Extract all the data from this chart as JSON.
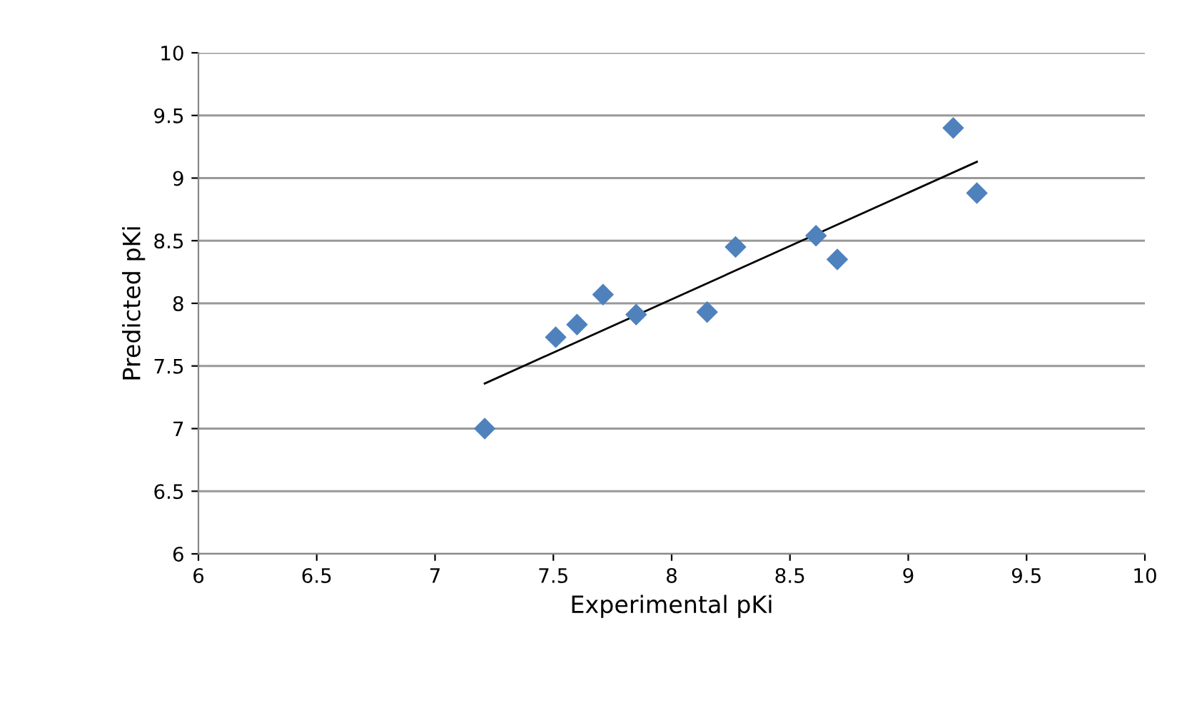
{
  "chart_data": {
    "type": "scatter",
    "xlabel": "Experimental pKi",
    "ylabel": "Predicted pKi",
    "series": [
      {
        "color": "#4f81bd",
        "marker": "diamond",
        "x": [
          7.21,
          7.51,
          7.6,
          7.71,
          7.85,
          8.15,
          8.27,
          8.61,
          8.7,
          9.19,
          9.29
        ],
        "values": [
          7.0,
          7.73,
          7.83,
          8.07,
          7.91,
          7.93,
          8.45,
          8.54,
          8.35,
          9.4,
          8.88
        ]
      },
      {
        "type": "line",
        "color": "#000000",
        "marker": "none",
        "x": [
          7.21,
          9.29
        ],
        "values": [
          7.36,
          9.13
        ]
      }
    ],
    "xlim": [
      6,
      10
    ],
    "ylim": [
      6,
      10
    ],
    "xticks": [
      6,
      6.5,
      7,
      7.5,
      8,
      8.5,
      9,
      9.5,
      10
    ],
    "yticks": [
      6,
      6.5,
      7,
      7.5,
      8,
      8.5,
      9,
      9.5,
      10
    ],
    "grid": "y",
    "legend": false
  }
}
